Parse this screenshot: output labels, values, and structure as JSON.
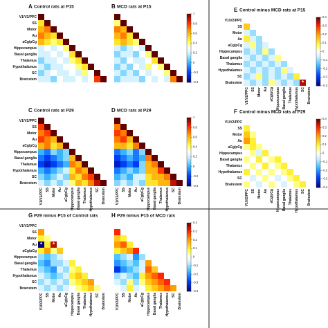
{
  "labels": [
    "V1/V2/PPC",
    "SS",
    "Motor",
    "Au",
    "aCg/pCg",
    "Hippocampus",
    "Basal ganglia",
    "Thalamus",
    "Hypothalamus",
    "SC",
    "Brainstem"
  ],
  "chart_data": [
    {
      "type": "heatmap",
      "label": "A",
      "title": "Control rats at P15",
      "clim": [
        -0.4,
        1
      ],
      "values": [
        [
          1
        ],
        [
          0.5,
          1
        ],
        [
          0.6,
          0.7,
          1
        ],
        [
          0.7,
          0.6,
          0.5,
          1
        ],
        [
          0.6,
          0.5,
          0.4,
          0.5,
          1
        ],
        [
          0.2,
          0.3,
          0.2,
          0.3,
          0.4,
          1
        ],
        [
          0.2,
          0.2,
          0.3,
          0.2,
          0.3,
          0.5,
          1
        ],
        [
          0.1,
          0.2,
          0.2,
          0.3,
          0.2,
          0.4,
          0.5,
          1
        ],
        [
          0.2,
          0.1,
          0.2,
          0.2,
          0.3,
          0.3,
          0.4,
          0.5,
          1
        ],
        [
          0.1,
          0.2,
          0.3,
          0.2,
          0.2,
          0.3,
          0.2,
          0.4,
          0.3,
          1
        ],
        [
          0.2,
          0.2,
          0.1,
          0.3,
          0.2,
          0.2,
          0.3,
          0.2,
          0.3,
          0.8,
          1
        ]
      ]
    },
    {
      "type": "heatmap",
      "label": "B",
      "title": "MCD rats at P15",
      "clim": [
        -0.4,
        1
      ],
      "yticks": [
        -0.4,
        -0.2,
        0,
        0.2,
        0.4,
        0.6,
        0.8,
        1
      ],
      "values": [
        [
          1
        ],
        [
          0.4,
          1
        ],
        [
          0.7,
          0.6,
          1
        ],
        [
          0.6,
          0.7,
          0.5,
          1
        ],
        [
          0.5,
          0.6,
          0.5,
          0.4,
          1
        ],
        [
          0.2,
          0.1,
          0.2,
          0.3,
          0.2,
          1
        ],
        [
          0.1,
          0.2,
          0.2,
          0.1,
          0.3,
          0.4,
          1
        ],
        [
          0.2,
          0.1,
          0.3,
          0.2,
          0.2,
          0.3,
          0.5,
          1
        ],
        [
          0.1,
          0.2,
          0.1,
          0.3,
          0.2,
          0.4,
          0.3,
          0.4,
          1
        ],
        [
          0.2,
          0.1,
          0.2,
          0.1,
          0.3,
          0.2,
          0.3,
          0.3,
          0.4,
          1
        ],
        [
          0.1,
          0.2,
          0.2,
          0.2,
          0.1,
          0.3,
          0.2,
          0.3,
          0.2,
          0.7,
          1
        ]
      ]
    },
    {
      "type": "heatmap",
      "label": "C",
      "title": "Control rats at P29",
      "clim": [
        -0.4,
        1
      ],
      "values": [
        [
          1
        ],
        [
          0.8,
          1
        ],
        [
          0.7,
          0.8,
          1
        ],
        [
          0.8,
          0.7,
          0.6,
          1
        ],
        [
          0.6,
          0.7,
          0.5,
          0.6,
          1
        ],
        [
          0,
          -0.1,
          0.1,
          0,
          0.1,
          1
        ],
        [
          -0.1,
          -0.2,
          -0.1,
          0,
          0.1,
          0.6,
          1
        ],
        [
          -0.2,
          -0.3,
          -0.2,
          -0.1,
          0,
          0.7,
          0.6,
          1
        ],
        [
          0,
          -0.1,
          0,
          0.1,
          0.2,
          0.5,
          0.7,
          0.6,
          1
        ],
        [
          0.1,
          0,
          0.1,
          0.2,
          0.1,
          0.6,
          0.5,
          0.7,
          0.8,
          1
        ],
        [
          0.2,
          0.1,
          0.2,
          0.1,
          0.2,
          0.4,
          0.6,
          0.5,
          0.7,
          0.9,
          1
        ]
      ]
    },
    {
      "type": "heatmap",
      "label": "D",
      "title": "MCD rats at P29",
      "clim": [
        -0.4,
        1
      ],
      "yticks": [
        -0.4,
        -0.2,
        0,
        0.2,
        0.4,
        0.6,
        0.8,
        1
      ],
      "values": [
        [
          1
        ],
        [
          0.7,
          1
        ],
        [
          0.8,
          0.7,
          1
        ],
        [
          0.7,
          0.8,
          0.6,
          1
        ],
        [
          0.6,
          0.6,
          0.5,
          0.7,
          1
        ],
        [
          -0.1,
          0,
          0.1,
          -0.1,
          0.1,
          1
        ],
        [
          -0.2,
          -0.1,
          0,
          -0.1,
          0,
          0.7,
          1
        ],
        [
          -0.3,
          -0.2,
          -0.1,
          -0.2,
          0.1,
          0.6,
          0.7,
          1
        ],
        [
          -0.1,
          0,
          0.1,
          0,
          0.1,
          0.6,
          0.6,
          0.8,
          1
        ],
        [
          0,
          0.1,
          0,
          0.2,
          0.2,
          0.5,
          0.6,
          0.6,
          0.7,
          1
        ],
        [
          0.1,
          0.2,
          0.1,
          0.2,
          0.1,
          0.5,
          0.5,
          0.6,
          0.6,
          0.9,
          1
        ]
      ]
    },
    {
      "type": "heatmap",
      "label": "E",
      "title": "Control minus MCD rats at P15",
      "clim": [
        -0.4,
        0.4
      ],
      "yticks": [
        -0.4,
        -0.3,
        -0.2,
        -0.1,
        0,
        0.1,
        0.2,
        0.3,
        0.4
      ],
      "markers": [
        {
          "row": 10,
          "col": 9,
          "label": "*"
        }
      ],
      "values": [
        [
          null
        ],
        [
          0.15,
          null
        ],
        [
          -0.05,
          -0.1,
          null
        ],
        [
          0.1,
          -0.05,
          -0.1,
          null
        ],
        [
          -0.05,
          0.05,
          -0.1,
          -0.05,
          null
        ],
        [
          -0.1,
          -0.05,
          -0.1,
          0.05,
          -0.1,
          null
        ],
        [
          -0.05,
          -0.1,
          -0.05,
          -0.1,
          -0.05,
          0.05,
          null
        ],
        [
          -0.1,
          -0.05,
          -0.1,
          -0.05,
          -0.1,
          -0.05,
          -0.1,
          null
        ],
        [
          -0.05,
          -0.1,
          -0.05,
          -0.1,
          -0.05,
          -0.1,
          0.05,
          -0.05,
          null
        ],
        [
          -0.1,
          -0.05,
          0.05,
          -0.1,
          -0.05,
          -0.1,
          -0.05,
          -0.1,
          0.1,
          null
        ],
        [
          -0.05,
          -0.1,
          -0.05,
          -0.1,
          0.05,
          -0.05,
          -0.1,
          -0.05,
          -0.1,
          0.35,
          null
        ]
      ]
    },
    {
      "type": "heatmap",
      "label": "F",
      "title": "Control minus MCD rats at P29",
      "clim": [
        -0.4,
        0.4
      ],
      "yticks": [
        -0.4,
        -0.3,
        -0.2,
        -0.1,
        0,
        0.1,
        0.2,
        0.3,
        0.4
      ],
      "values": [
        [
          null
        ],
        [
          0.1,
          null
        ],
        [
          0.15,
          0.05,
          null
        ],
        [
          0.2,
          0.1,
          0,
          null
        ],
        [
          0.05,
          0.1,
          0.05,
          0,
          null
        ],
        [
          0,
          0.05,
          -0.05,
          0.1,
          0,
          null
        ],
        [
          0.05,
          0,
          0.1,
          0,
          0.05,
          0.1,
          null
        ],
        [
          0,
          0.05,
          0,
          0.1,
          0,
          0.05,
          0.1,
          null
        ],
        [
          0.1,
          0,
          0.05,
          0,
          0.05,
          0,
          0.05,
          0.1,
          null
        ],
        [
          0,
          -0.05,
          0,
          0.05,
          0,
          -0.05,
          0,
          0.05,
          0.1,
          null
        ],
        [
          0.05,
          0,
          -0.05,
          0,
          0.05,
          0,
          -0.05,
          0,
          0.05,
          0.1,
          null
        ]
      ]
    },
    {
      "type": "heatmap",
      "label": "G",
      "title": "P29 minus P15 of Control rats",
      "clim": [
        -0.4,
        0.4
      ],
      "markers": [
        {
          "row": 3,
          "col": 0,
          "label": "*"
        },
        {
          "row": 3,
          "col": 2,
          "label": "*"
        }
      ],
      "values": [
        [
          null
        ],
        [
          0.2,
          null
        ],
        [
          0.1,
          0.05,
          null
        ],
        [
          -0.4,
          0.1,
          0.35,
          null
        ],
        [
          0.1,
          0.2,
          0.05,
          0.15,
          null
        ],
        [
          -0.1,
          -0.15,
          -0.1,
          -0.05,
          0,
          null
        ],
        [
          -0.15,
          -0.2,
          -0.1,
          -0.1,
          -0.05,
          0.1,
          null
        ],
        [
          -0.1,
          -0.15,
          -0.2,
          -0.05,
          -0.1,
          0.05,
          0.1,
          null
        ],
        [
          -0.05,
          -0.1,
          -0.15,
          -0.1,
          -0.05,
          0.1,
          0.15,
          0.1,
          null
        ],
        [
          -0.1,
          -0.05,
          -0.1,
          -0.05,
          -0.1,
          0.05,
          0.1,
          0.15,
          0.2,
          null
        ],
        [
          -0.05,
          -0.1,
          -0.05,
          -0.1,
          -0.05,
          0,
          0.05,
          0.1,
          0.15,
          0.05,
          null
        ]
      ]
    },
    {
      "type": "heatmap",
      "label": "H",
      "title": "P29 minus P15 of MCD rats",
      "clim": [
        -0.4,
        0.4
      ],
      "yticks": [
        -0.4,
        -0.3,
        -0.2,
        -0.1,
        0,
        0.1,
        0.2,
        0.3,
        0.4
      ],
      "values": [
        [
          null
        ],
        [
          0.3,
          null
        ],
        [
          0.15,
          0.1,
          null
        ],
        [
          0.2,
          0.25,
          0.1,
          null
        ],
        [
          0.1,
          0.15,
          0.2,
          0.3,
          null
        ],
        [
          -0.15,
          -0.1,
          -0.05,
          -0.2,
          -0.1,
          null
        ],
        [
          -0.2,
          -0.15,
          -0.1,
          -0.15,
          -0.05,
          0.2,
          null
        ],
        [
          -0.3,
          -0.2,
          -0.15,
          -0.1,
          -0.05,
          0.25,
          0.15,
          null
        ],
        [
          -0.1,
          -0.05,
          -0.1,
          -0.15,
          0.1,
          0.2,
          0.25,
          0.3,
          null
        ],
        [
          -0.05,
          -0.1,
          0.05,
          -0.1,
          0.05,
          0.15,
          0.2,
          0.25,
          0.3,
          null
        ],
        [
          0,
          -0.05,
          0.1,
          -0.05,
          0,
          0.1,
          0.15,
          0.2,
          0.25,
          0.2,
          null
        ]
      ]
    }
  ]
}
